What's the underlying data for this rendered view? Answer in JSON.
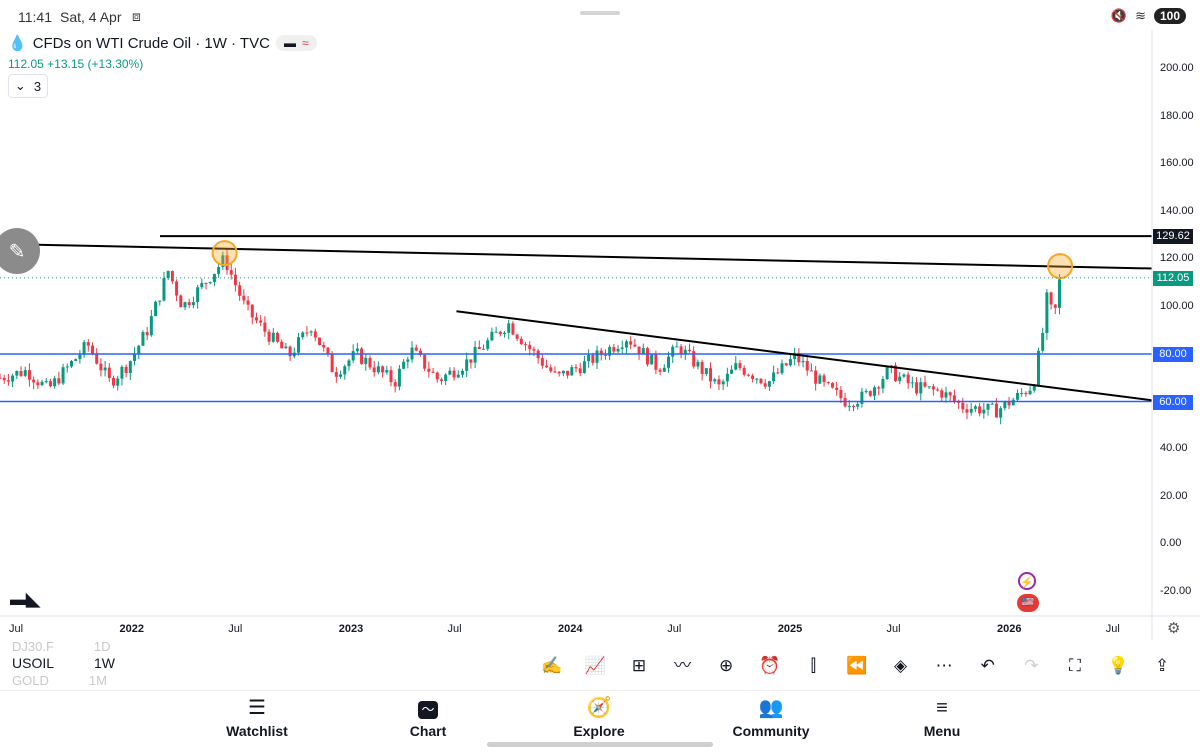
{
  "status_bar": {
    "time": "11:41",
    "date": "Sat, 4 Apr",
    "battery": "100"
  },
  "legend": {
    "title": "CFDs on WTI Crude Oil · 1W · TVC",
    "price": "112.05",
    "change": "+13.15 (+13.30%)",
    "collapse_count": "3"
  },
  "colors": {
    "up": "#089981",
    "down": "#f23645",
    "level": "#2962ff",
    "trendline": "#000000",
    "highlight": "#f5a623"
  },
  "chart_data": {
    "type": "candlestick",
    "symbol": "USOIL",
    "interval": "1W",
    "ylim": [
      -30,
      220
    ],
    "xlim": [
      "2021-06-01",
      "2026-09-01"
    ],
    "y_ticks": [
      200,
      180,
      160,
      140,
      120,
      100,
      80,
      60,
      40,
      20,
      0,
      -20
    ],
    "x_ticks": [
      {
        "label": "Jul",
        "date": "2021-07-01"
      },
      {
        "label": "2022",
        "date": "2022-01-01"
      },
      {
        "label": "Jul",
        "date": "2022-07-01"
      },
      {
        "label": "2023",
        "date": "2023-01-01"
      },
      {
        "label": "Jul",
        "date": "2023-07-01"
      },
      {
        "label": "2024",
        "date": "2024-01-01"
      },
      {
        "label": "Jul",
        "date": "2024-07-01"
      },
      {
        "label": "2025",
        "date": "2025-01-01"
      },
      {
        "label": "Jul",
        "date": "2025-07-01"
      },
      {
        "label": "2026",
        "date": "2026-01-01"
      },
      {
        "label": "Jul",
        "date": "2026-07-01"
      }
    ],
    "horizontal_levels": [
      {
        "value": 129.62,
        "label": "129.62",
        "color": "#000000"
      },
      {
        "value": 80,
        "label": "80.00",
        "color": "#2962ff"
      },
      {
        "value": 60,
        "label": "60.00",
        "color": "#2962ff"
      }
    ],
    "last_price": {
      "value": 112.05,
      "label": "112.05"
    },
    "trendlines": [
      {
        "from": {
          "date": "2021-05-01",
          "value": 126.5
        },
        "to": {
          "date": "2026-09-01",
          "value": 116.0
        }
      },
      {
        "from": {
          "date": "2023-07-01",
          "value": 98.0
        },
        "to": {
          "date": "2026-09-01",
          "value": 60.5
        }
      }
    ],
    "highlights": [
      {
        "date": "2022-06-10",
        "value": 122.5
      },
      {
        "date": "2026-04-01",
        "value": 117.0
      }
    ],
    "series": [
      {
        "date": "2021-06-01",
        "value": 70
      },
      {
        "date": "2021-07-15",
        "value": 73
      },
      {
        "date": "2021-08-20",
        "value": 65
      },
      {
        "date": "2021-10-01",
        "value": 77
      },
      {
        "date": "2021-10-25",
        "value": 84
      },
      {
        "date": "2021-12-01",
        "value": 68
      },
      {
        "date": "2022-01-01",
        "value": 76
      },
      {
        "date": "2022-02-01",
        "value": 90
      },
      {
        "date": "2022-03-08",
        "value": 115
      },
      {
        "date": "2022-04-01",
        "value": 100
      },
      {
        "date": "2022-05-01",
        "value": 108
      },
      {
        "date": "2022-06-10",
        "value": 120
      },
      {
        "date": "2022-07-15",
        "value": 99
      },
      {
        "date": "2022-08-15",
        "value": 90
      },
      {
        "date": "2022-09-25",
        "value": 79
      },
      {
        "date": "2022-11-01",
        "value": 92
      },
      {
        "date": "2022-12-10",
        "value": 72
      },
      {
        "date": "2023-01-15",
        "value": 80
      },
      {
        "date": "2023-03-20",
        "value": 68
      },
      {
        "date": "2023-04-15",
        "value": 82
      },
      {
        "date": "2023-06-01",
        "value": 69
      },
      {
        "date": "2023-07-15",
        "value": 76
      },
      {
        "date": "2023-09-25",
        "value": 93
      },
      {
        "date": "2023-11-01",
        "value": 82
      },
      {
        "date": "2023-12-15",
        "value": 70
      },
      {
        "date": "2024-02-01",
        "value": 76
      },
      {
        "date": "2024-04-10",
        "value": 87
      },
      {
        "date": "2024-06-01",
        "value": 74
      },
      {
        "date": "2024-07-05",
        "value": 83
      },
      {
        "date": "2024-09-10",
        "value": 66
      },
      {
        "date": "2024-10-10",
        "value": 75
      },
      {
        "date": "2024-12-01",
        "value": 68
      },
      {
        "date": "2025-01-15",
        "value": 79
      },
      {
        "date": "2025-03-01",
        "value": 67
      },
      {
        "date": "2025-04-10",
        "value": 60
      },
      {
        "date": "2025-05-10",
        "value": 62
      },
      {
        "date": "2025-06-20",
        "value": 73
      },
      {
        "date": "2025-08-01",
        "value": 66
      },
      {
        "date": "2025-09-15",
        "value": 64
      },
      {
        "date": "2025-10-20",
        "value": 58
      },
      {
        "date": "2025-12-15",
        "value": 56
      },
      {
        "date": "2026-01-20",
        "value": 62
      },
      {
        "date": "2026-02-15",
        "value": 67
      },
      {
        "date": "2026-03-01",
        "value": 85
      },
      {
        "date": "2026-03-10",
        "value": 103
      },
      {
        "date": "2026-03-22",
        "value": 95
      },
      {
        "date": "2026-04-01",
        "value": 112.05
      }
    ]
  },
  "symbol_list": [
    {
      "symbol": "DJ30.F",
      "interval": "1D"
    },
    {
      "symbol": "USOIL",
      "interval": "1W"
    },
    {
      "symbol": "GOLD",
      "interval": "1M"
    }
  ],
  "nav": [
    {
      "label": "Watchlist",
      "icon": "watchlist-icon"
    },
    {
      "label": "Chart",
      "icon": "chart-icon"
    },
    {
      "label": "Explore",
      "icon": "compass-icon"
    },
    {
      "label": "Community",
      "icon": "community-icon"
    },
    {
      "label": "Menu",
      "icon": "menu-icon"
    }
  ]
}
